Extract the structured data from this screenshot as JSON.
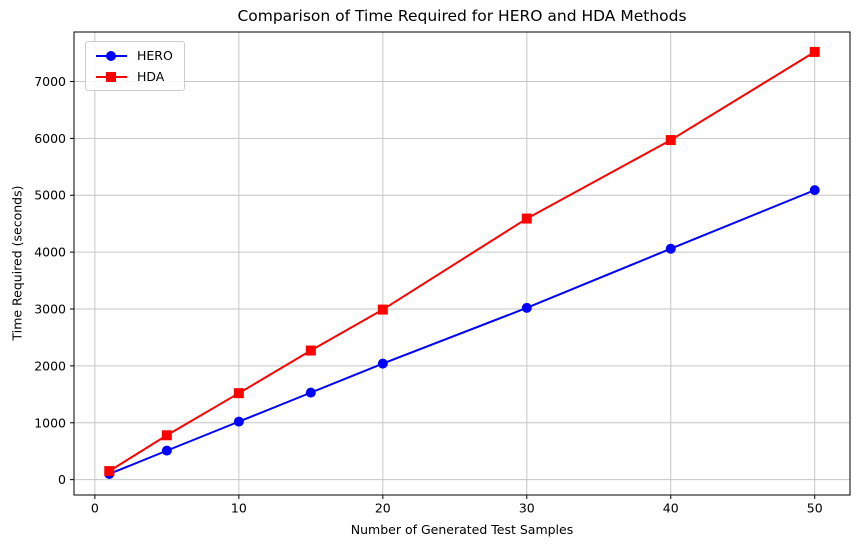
{
  "chart_data": {
    "type": "line",
    "title": "Comparison of Time Required for HERO and HDA Methods",
    "xlabel": "Number of Generated Test Samples",
    "ylabel": "Time Required (seconds)",
    "x": [
      1,
      5,
      10,
      15,
      20,
      30,
      40,
      50
    ],
    "series": [
      {
        "name": "HERO",
        "color": "#0000ff",
        "marker": "circle",
        "values": [
          100,
          510,
          1020,
          1530,
          2040,
          3020,
          4060,
          5090
        ]
      },
      {
        "name": "HDA",
        "color": "#ff0000",
        "marker": "square",
        "values": [
          150,
          780,
          1520,
          2270,
          2990,
          4590,
          5970,
          7520
        ]
      }
    ],
    "xticks": [
      0,
      10,
      20,
      30,
      40,
      50
    ],
    "yticks": [
      0,
      1000,
      2000,
      3000,
      4000,
      5000,
      6000,
      7000
    ],
    "xlim": [
      -1.45,
      52.45
    ],
    "ylim": [
      -270,
      7870
    ],
    "grid": true,
    "legend_position": "upper-left"
  },
  "colors": {
    "hero_blue": "#0000ff",
    "hda_red": "#ff0000",
    "grid": "#c6c6c6",
    "spine": "#000000",
    "background": "#ffffff"
  }
}
